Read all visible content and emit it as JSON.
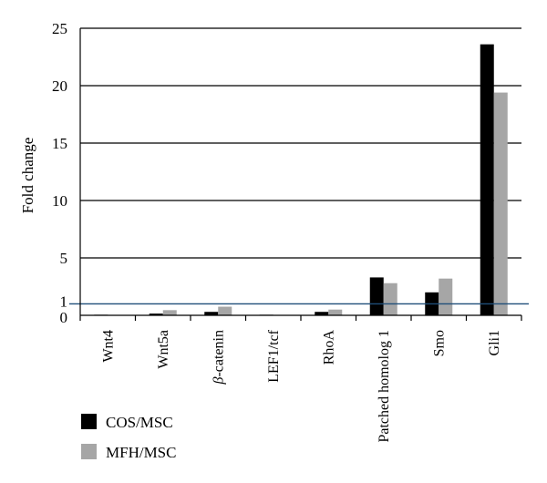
{
  "chart_data": {
    "type": "bar",
    "ylabel": "Fold change",
    "xlabel": "",
    "ylim": [
      0,
      25
    ],
    "yticks": [
      0,
      1,
      5,
      10,
      15,
      20,
      25
    ],
    "gridlines": [
      5,
      10,
      15,
      20,
      25
    ],
    "reference_line": {
      "value": 1,
      "color": "#1f4e79"
    },
    "categories": [
      "Wnt4",
      "Wnt5a",
      "β-catenin",
      "LEF1/tcf",
      "RhoA",
      "Patched homolog 1",
      "Smo",
      "Gli1"
    ],
    "category_display": [
      {
        "parts": [
          {
            "text": "Wnt4"
          }
        ]
      },
      {
        "parts": [
          {
            "text": "Wnt5a"
          }
        ]
      },
      {
        "parts": [
          {
            "text": "β",
            "italic": true
          },
          {
            "text": "-catenin"
          }
        ]
      },
      {
        "parts": [
          {
            "text": "LEF1/tcf"
          }
        ]
      },
      {
        "parts": [
          {
            "text": "RhoA"
          }
        ]
      },
      {
        "parts": [
          {
            "text": "Patched homolog 1"
          }
        ]
      },
      {
        "parts": [
          {
            "text": "Smo"
          }
        ]
      },
      {
        "parts": [
          {
            "text": "Gli1"
          }
        ]
      }
    ],
    "series": [
      {
        "name": "COS/MSC",
        "color": "#000000",
        "values": [
          0.05,
          0.15,
          0.3,
          0.05,
          0.3,
          3.3,
          2.0,
          23.6
        ]
      },
      {
        "name": "MFH/MSC",
        "color": "#a6a6a6",
        "values": [
          0.0,
          0.45,
          0.75,
          0.0,
          0.5,
          2.8,
          3.2,
          19.4
        ]
      }
    ],
    "legend_position": "bottom-left"
  }
}
